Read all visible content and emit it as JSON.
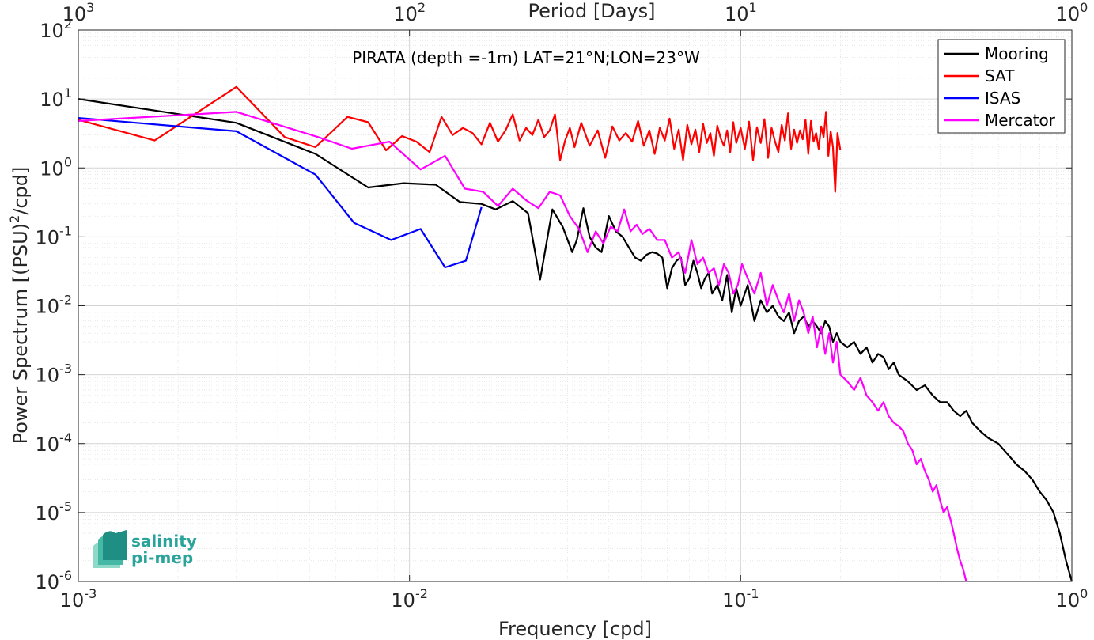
{
  "chart_data": {
    "type": "line",
    "title": "PIRATA (depth =-1m) LAT=21°N;LON=23°W",
    "xlabel": "Frequency [cpd]",
    "ylabel": "Power Spectrum [(PSU)",
    "ylabel_sup": "2",
    "ylabel_tail": "/cpd]",
    "top_xlabel": "Period [Days]",
    "x_scale": "log",
    "y_scale": "log",
    "xlim": [
      0.001,
      1
    ],
    "ylim": [
      1e-06,
      100
    ],
    "grid": true,
    "legend_position": "top-right",
    "x_ticks": [
      {
        "value": 0.001,
        "base": "10",
        "exp": "-3"
      },
      {
        "value": 0.01,
        "base": "10",
        "exp": "-2"
      },
      {
        "value": 0.1,
        "base": "10",
        "exp": "-1"
      },
      {
        "value": 1,
        "base": "10",
        "exp": "0"
      }
    ],
    "y_ticks": [
      {
        "value": 1e-06,
        "base": "10",
        "exp": "-6"
      },
      {
        "value": 1e-05,
        "base": "10",
        "exp": "-5"
      },
      {
        "value": 0.0001,
        "base": "10",
        "exp": "-4"
      },
      {
        "value": 0.001,
        "base": "10",
        "exp": "-3"
      },
      {
        "value": 0.01,
        "base": "10",
        "exp": "-2"
      },
      {
        "value": 0.1,
        "base": "10",
        "exp": "-1"
      },
      {
        "value": 1,
        "base": "10",
        "exp": "0"
      },
      {
        "value": 10,
        "base": "10",
        "exp": "1"
      },
      {
        "value": 100,
        "base": "10",
        "exp": "2"
      }
    ],
    "top_ticks": [
      {
        "value": 0.001,
        "base": "10",
        "exp": "3"
      },
      {
        "value": 0.01,
        "base": "10",
        "exp": "2"
      },
      {
        "value": 0.1,
        "base": "10",
        "exp": "1"
      },
      {
        "value": 1,
        "base": "10",
        "exp": "0"
      }
    ],
    "series": [
      {
        "name": "Mooring",
        "color": "#000000",
        "x": [
          0.001,
          0.003,
          0.0052,
          0.0075,
          0.0096,
          0.012,
          0.0142,
          0.0165,
          0.0182,
          0.0205,
          0.0228,
          0.0248,
          0.027,
          0.029,
          0.031,
          0.032,
          0.0335,
          0.035,
          0.0365,
          0.038,
          0.04,
          0.042,
          0.044,
          0.046,
          0.048,
          0.05,
          0.052,
          0.054,
          0.056,
          0.058,
          0.06,
          0.062,
          0.064,
          0.066,
          0.068,
          0.07,
          0.072,
          0.074,
          0.076,
          0.078,
          0.08,
          0.082,
          0.085,
          0.088,
          0.091,
          0.094,
          0.097,
          0.1,
          0.105,
          0.11,
          0.115,
          0.12,
          0.125,
          0.13,
          0.135,
          0.14,
          0.145,
          0.15,
          0.155,
          0.16,
          0.165,
          0.17,
          0.175,
          0.18,
          0.185,
          0.19,
          0.195,
          0.2,
          0.21,
          0.22,
          0.23,
          0.24,
          0.25,
          0.26,
          0.27,
          0.28,
          0.29,
          0.3,
          0.32,
          0.34,
          0.36,
          0.38,
          0.4,
          0.42,
          0.44,
          0.46,
          0.48,
          0.5,
          0.53,
          0.56,
          0.6,
          0.64,
          0.68,
          0.72,
          0.76,
          0.8,
          0.84,
          0.88,
          0.92,
          0.96,
          1.0
        ],
        "y": [
          10,
          4.5,
          1.6,
          0.52,
          0.6,
          0.57,
          0.32,
          0.3,
          0.25,
          0.33,
          0.22,
          0.024,
          0.25,
          0.14,
          0.06,
          0.09,
          0.26,
          0.1,
          0.07,
          0.06,
          0.2,
          0.12,
          0.1,
          0.07,
          0.05,
          0.045,
          0.055,
          0.06,
          0.057,
          0.05,
          0.018,
          0.035,
          0.045,
          0.05,
          0.02,
          0.025,
          0.045,
          0.03,
          0.018,
          0.025,
          0.03,
          0.015,
          0.02,
          0.012,
          0.028,
          0.008,
          0.018,
          0.01,
          0.02,
          0.006,
          0.012,
          0.008,
          0.01,
          0.007,
          0.006,
          0.008,
          0.004,
          0.006,
          0.007,
          0.005,
          0.006,
          0.005,
          0.004,
          0.006,
          0.005,
          0.003,
          0.004,
          0.003,
          0.0025,
          0.003,
          0.002,
          0.0025,
          0.0015,
          0.002,
          0.0018,
          0.0012,
          0.0015,
          0.001,
          0.0008,
          0.0006,
          0.0007,
          0.0005,
          0.0004,
          0.0004,
          0.0003,
          0.00025,
          0.0003,
          0.0002,
          0.00015,
          0.00012,
          0.0001,
          7e-05,
          5e-05,
          4e-05,
          3e-05,
          2e-05,
          1.5e-05,
          1e-05,
          5e-06,
          2e-06,
          1e-06
        ]
      },
      {
        "name": "SAT",
        "color": "#ff0000",
        "x": [
          0.001,
          0.0017,
          0.003,
          0.0042,
          0.0052,
          0.0065,
          0.0075,
          0.0085,
          0.0095,
          0.0105,
          0.0115,
          0.0125,
          0.0135,
          0.0145,
          0.0155,
          0.0165,
          0.0175,
          0.0185,
          0.0195,
          0.0205,
          0.0215,
          0.0225,
          0.0235,
          0.0245,
          0.0255,
          0.0265,
          0.0275,
          0.0285,
          0.0295,
          0.0305,
          0.0315,
          0.033,
          0.035,
          0.037,
          0.039,
          0.041,
          0.043,
          0.045,
          0.047,
          0.049,
          0.051,
          0.053,
          0.055,
          0.057,
          0.059,
          0.061,
          0.063,
          0.065,
          0.067,
          0.069,
          0.071,
          0.073,
          0.075,
          0.077,
          0.079,
          0.081,
          0.083,
          0.085,
          0.087,
          0.089,
          0.091,
          0.093,
          0.095,
          0.097,
          0.1,
          0.103,
          0.106,
          0.109,
          0.112,
          0.115,
          0.118,
          0.121,
          0.124,
          0.127,
          0.13,
          0.133,
          0.136,
          0.139,
          0.142,
          0.145,
          0.148,
          0.151,
          0.154,
          0.157,
          0.16,
          0.163,
          0.166,
          0.169,
          0.172,
          0.175,
          0.178,
          0.181,
          0.184,
          0.187,
          0.19,
          0.193,
          0.196,
          0.2
        ],
        "y": [
          5,
          2.5,
          15,
          2.8,
          2,
          5.5,
          4.6,
          1.8,
          2.9,
          2.4,
          1.7,
          5.5,
          3,
          3.8,
          3.2,
          2.2,
          4.5,
          2.4,
          3.5,
          6,
          2.5,
          3.8,
          3,
          5,
          2.8,
          3.5,
          6,
          1.3,
          2.5,
          3.8,
          2,
          4.5,
          2.1,
          3.5,
          1.4,
          4,
          2.5,
          3.2,
          2.4,
          4.8,
          2.1,
          3.5,
          1.6,
          3.8,
          2.5,
          5.2,
          1.9,
          3.6,
          1.3,
          4.2,
          2.2,
          3.6,
          1.7,
          4.4,
          2.3,
          3.2,
          1.5,
          4.1,
          2.7,
          2.1,
          3.5,
          1.7,
          4.6,
          2.3,
          3.8,
          1.9,
          4.7,
          1.3,
          3.9,
          2.3,
          5.1,
          1.4,
          3.8,
          2.4,
          1.7,
          4.2,
          2.5,
          6.2,
          1.9,
          3.6,
          2.3,
          3.5,
          2.6,
          5,
          1.6,
          4.8,
          2.4,
          3.2,
          1.9,
          4,
          2.8,
          6.5,
          1.5,
          3.4,
          2,
          0.45,
          3.2,
          1.8
        ]
      },
      {
        "name": "ISAS",
        "color": "#0000ff",
        "x": [
          0.001,
          0.003,
          0.0052,
          0.0068,
          0.0088,
          0.0108,
          0.0128,
          0.0148,
          0.0165
        ],
        "y": [
          5.3,
          3.4,
          0.8,
          0.16,
          0.09,
          0.13,
          0.036,
          0.045,
          0.27
        ]
      },
      {
        "name": "Mercator",
        "color": "#ff00ff",
        "x": [
          0.001,
          0.003,
          0.0053,
          0.0067,
          0.0087,
          0.0108,
          0.0128,
          0.0147,
          0.0167,
          0.0185,
          0.0205,
          0.0225,
          0.0245,
          0.0265,
          0.0285,
          0.0305,
          0.0325,
          0.0345,
          0.0365,
          0.0385,
          0.0405,
          0.0425,
          0.0445,
          0.0465,
          0.0485,
          0.0505,
          0.053,
          0.056,
          0.059,
          0.062,
          0.065,
          0.068,
          0.071,
          0.074,
          0.077,
          0.08,
          0.083,
          0.086,
          0.089,
          0.092,
          0.095,
          0.098,
          0.101,
          0.105,
          0.11,
          0.115,
          0.12,
          0.125,
          0.13,
          0.135,
          0.14,
          0.145,
          0.15,
          0.155,
          0.16,
          0.165,
          0.17,
          0.175,
          0.18,
          0.185,
          0.19,
          0.195,
          0.2,
          0.21,
          0.22,
          0.23,
          0.24,
          0.25,
          0.26,
          0.27,
          0.28,
          0.29,
          0.3,
          0.31,
          0.32,
          0.33,
          0.34,
          0.35,
          0.36,
          0.37,
          0.38,
          0.39,
          0.4,
          0.41,
          0.42,
          0.43,
          0.44,
          0.45,
          0.46,
          0.47,
          0.48
        ],
        "y": [
          4.8,
          6.5,
          2.8,
          1.9,
          2.4,
          0.95,
          1.5,
          0.5,
          0.45,
          0.28,
          0.5,
          0.34,
          0.26,
          0.45,
          0.4,
          0.2,
          0.13,
          0.06,
          0.12,
          0.08,
          0.14,
          0.12,
          0.25,
          0.12,
          0.15,
          0.11,
          0.13,
          0.09,
          0.09,
          0.05,
          0.06,
          0.03,
          0.09,
          0.04,
          0.05,
          0.03,
          0.035,
          0.02,
          0.04,
          0.03,
          0.015,
          0.02,
          0.04,
          0.025,
          0.015,
          0.03,
          0.01,
          0.02,
          0.012,
          0.008,
          0.015,
          0.006,
          0.012,
          0.008,
          0.004,
          0.007,
          0.0025,
          0.005,
          0.002,
          0.004,
          0.0015,
          0.003,
          0.001,
          0.0008,
          0.0006,
          0.0009,
          0.0005,
          0.0004,
          0.0003,
          0.0004,
          0.00025,
          0.0002,
          0.00018,
          0.00015,
          0.0001,
          8e-05,
          5e-05,
          6e-05,
          4e-05,
          3e-05,
          2e-05,
          2.5e-05,
          1.5e-05,
          1e-05,
          1.2e-05,
          8e-06,
          5e-06,
          3e-06,
          2e-06,
          1.5e-06,
          1e-06
        ]
      }
    ]
  },
  "logo": {
    "line1": "salinity",
    "line2": "pi-mep",
    "color": "#2aa39a"
  }
}
